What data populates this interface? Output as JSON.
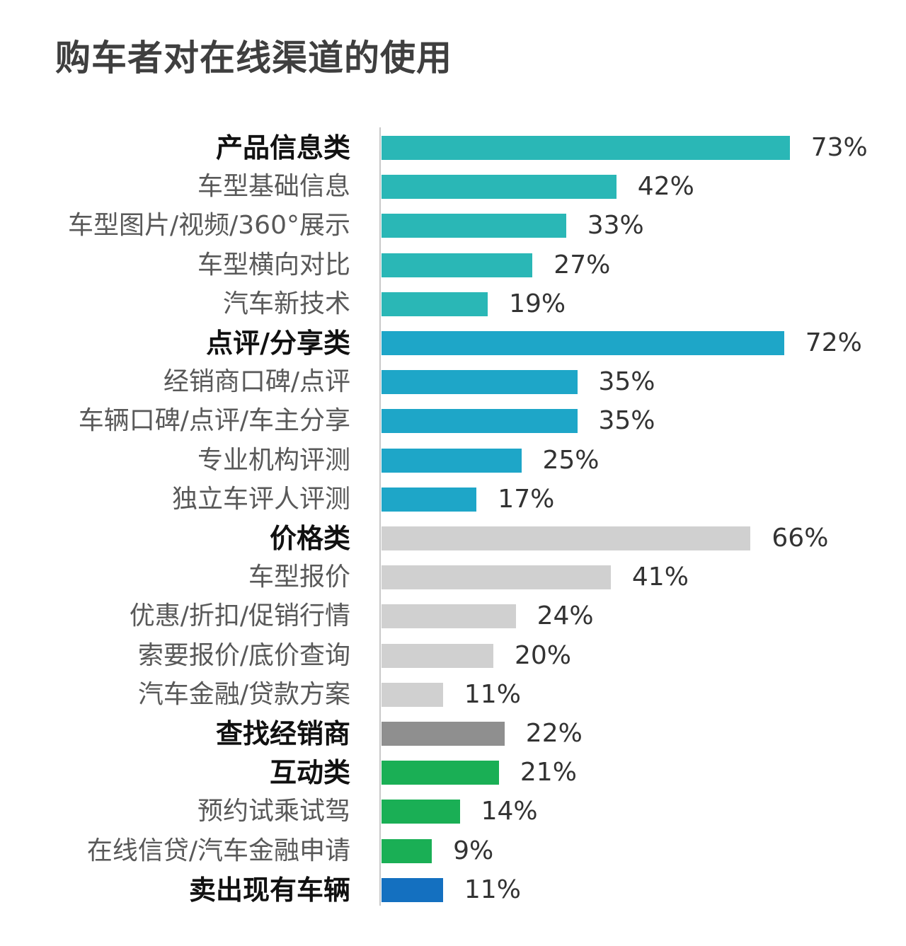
{
  "chart_data": {
    "type": "bar",
    "orientation": "horizontal",
    "title": "购车者对在线渠道的使用",
    "xlim": [
      0,
      75
    ],
    "grid": false,
    "legend": "none",
    "categories": [
      "产品信息类",
      "车型基础信息",
      "车型图片/视频/360°展示",
      "车型横向对比",
      "汽车新技术",
      "点评/分享类",
      "经销商口碑/点评",
      "车辆口碑/点评/车主分享",
      "专业机构评测",
      "独立车评人评测",
      "价格类",
      "车型报价",
      "优惠/折扣/促销行情",
      "索要报价/底价查询",
      "汽车金融/贷款方案",
      "查找经销商",
      "互动类",
      "预约试乘试驾",
      "在线信贷/汽车金融申请",
      "卖出现有车辆"
    ],
    "values": [
      73,
      42,
      33,
      27,
      19,
      72,
      35,
      35,
      25,
      17,
      66,
      41,
      24,
      20,
      11,
      22,
      21,
      14,
      9,
      11
    ],
    "value_labels": [
      "73%",
      "42%",
      "33%",
      "27%",
      "19%",
      "72%",
      "35%",
      "35%",
      "25%",
      "17%",
      "66%",
      "41%",
      "24%",
      "20%",
      "11%",
      "22%",
      "21%",
      "14%",
      "9%",
      "11%"
    ],
    "is_group_header": [
      true,
      false,
      false,
      false,
      false,
      true,
      false,
      false,
      false,
      false,
      true,
      false,
      false,
      false,
      false,
      true,
      true,
      false,
      false,
      true
    ],
    "bar_colors": [
      "#2ab7b6",
      "#2ab7b6",
      "#2ab7b6",
      "#2ab7b6",
      "#2ab7b6",
      "#1ea6c8",
      "#1ea6c8",
      "#1ea6c8",
      "#1ea6c8",
      "#1ea6c8",
      "#d0d0d0",
      "#d0d0d0",
      "#d0d0d0",
      "#d0d0d0",
      "#d0d0d0",
      "#8f8f8f",
      "#1aaf55",
      "#1aaf55",
      "#1aaf55",
      "#1470c0"
    ]
  }
}
